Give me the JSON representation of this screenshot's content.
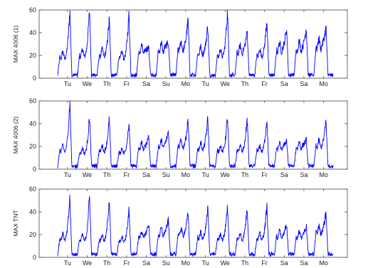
{
  "chart_data": [
    {
      "type": "line",
      "ylabel": "MAX 4006 (1)",
      "ylim": [
        0,
        60
      ],
      "yticks": [
        0,
        20,
        40,
        60
      ],
      "xticks": [
        "Tu",
        "We",
        "Th",
        "Fr",
        "Sa",
        "Su",
        "Mo",
        "Tu",
        "We",
        "Th",
        "Fr",
        "Sa",
        "Sa",
        "Mo"
      ],
      "series": [
        {
          "color": "#0000ff",
          "daily_peaks": [
            60,
            60,
            52,
            57,
            27,
            32,
            52,
            47,
            60,
            42,
            53,
            44,
            45,
            45
          ],
          "daily_shoulders": [
            20,
            22,
            22,
            20,
            25,
            27,
            28,
            24,
            22,
            25,
            22,
            27,
            28,
            30
          ],
          "daily_baseline": 2
        }
      ]
    },
    {
      "type": "line",
      "ylabel": "MAX 4006 (2)",
      "ylim": [
        0,
        60
      ],
      "yticks": [
        0,
        20,
        40,
        60
      ],
      "xticks": [
        "Tu",
        "We",
        "Th",
        "Fr",
        "Sa",
        "Su",
        "Mo",
        "Tu",
        "We",
        "Th",
        "Fr",
        "Sa",
        "Sa",
        "Mo"
      ],
      "series": [
        {
          "color": "#0000ff",
          "daily_peaks": [
            60,
            47,
            44,
            42,
            30,
            34,
            44,
            45,
            46,
            45,
            45,
            26,
            26,
            43
          ],
          "daily_shoulders": [
            18,
            16,
            18,
            16,
            20,
            22,
            22,
            20,
            18,
            18,
            18,
            20,
            21,
            22
          ],
          "daily_baseline": 2
        }
      ]
    },
    {
      "type": "line",
      "ylabel": "MAX TNT",
      "ylim": [
        0,
        60
      ],
      "yticks": [
        0,
        20,
        40,
        60
      ],
      "xticks": [
        "Tu",
        "We",
        "Th",
        "Fr",
        "Sa",
        "Su",
        "Mo",
        "Tu",
        "We",
        "Th",
        "Fr",
        "Sa",
        "Sa",
        "Mo"
      ],
      "series": [
        {
          "color": "#0000ff",
          "daily_peaks": [
            53,
            55,
            53,
            42,
            30,
            33,
            39,
            44,
            46,
            45,
            46,
            30,
            28,
            40
          ],
          "daily_shoulders": [
            18,
            17,
            17,
            16,
            20,
            22,
            22,
            19,
            18,
            18,
            18,
            20,
            20,
            24
          ],
          "daily_baseline": 2
        }
      ]
    }
  ]
}
